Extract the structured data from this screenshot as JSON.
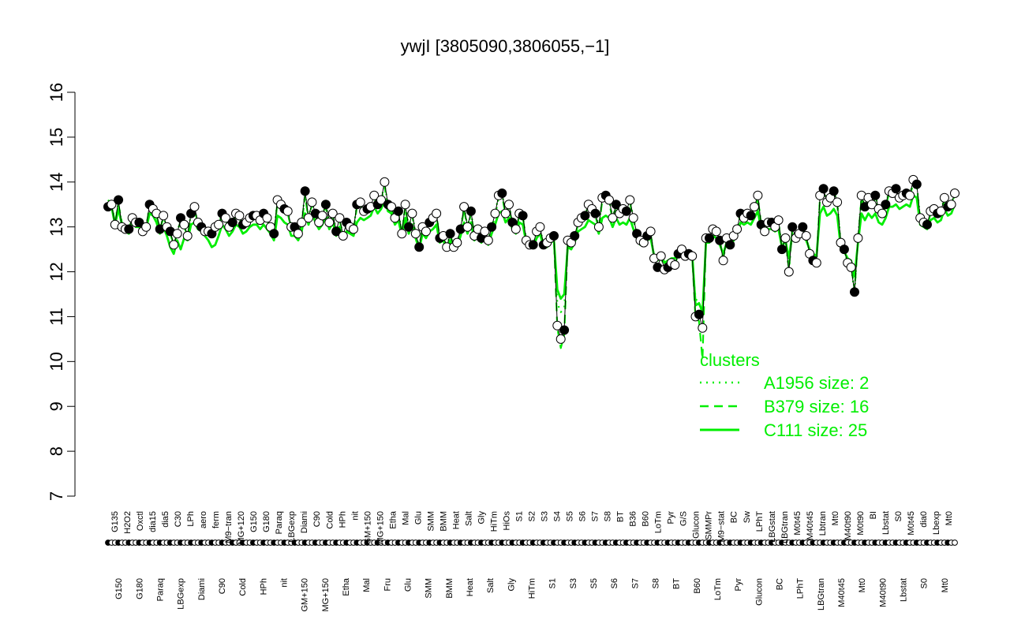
{
  "chart_data": {
    "type": "line",
    "title": "ywjI [3805090,3806055,−1]",
    "xlabel": "",
    "ylabel": "",
    "ylim": [
      7,
      16
    ],
    "y_ticks": [
      7,
      8,
      9,
      10,
      11,
      12,
      13,
      14,
      15,
      16
    ],
    "colors": {
      "series": "#00ee00",
      "points": "#000000",
      "open_fill": "#ffffff"
    },
    "legend": {
      "title": "clusters",
      "position": "bottom-right",
      "entries": [
        {
          "label": "A1956 size: 2",
          "style": "dotted"
        },
        {
          "label": "B379 size: 16",
          "style": "dashed"
        },
        {
          "label": "C111 size: 25",
          "style": "solid"
        }
      ]
    },
    "labels_top": [
      "G135",
      "H2O2",
      "Oxctl",
      "dia15",
      "dia5",
      "C30",
      "LPh",
      "aero",
      "ferm",
      "M9−tran",
      "MG+120",
      "G150",
      "G180",
      "Paraq",
      "LBGexp",
      "Diami",
      "C90",
      "Cold",
      "HPh",
      "nit",
      "GM+150",
      "MG+150",
      "Etha",
      "Mal",
      "Glu",
      "SMM",
      "BMM",
      "Heat",
      "Salt",
      "Gly",
      "HiTm",
      "HiOs",
      "S1",
      "S2",
      "S3",
      "S4",
      "S5",
      "S6",
      "S7",
      "S8",
      "BT",
      "B36",
      "B60",
      "LoTm",
      "Pyr",
      "G/S",
      "Glucon",
      "SMMPr",
      "M9−stat",
      "BC",
      "Sw",
      "LPhT",
      "LBGstat",
      "LBGtran",
      "M0t45",
      "M40t45",
      "Lbtran",
      "Mt0",
      "M40t90",
      "M0t90",
      "BI",
      "Lbstat",
      "S0",
      "M0t45",
      "dia0",
      "Lbexp",
      "Mt0"
    ],
    "labels_bottom": [
      "G150",
      "G180",
      "Paraq",
      "LBGexp",
      "Diami",
      "C90",
      "Cold",
      "HPh",
      "nit",
      "GM+150",
      "MG+150",
      "Etha",
      "Mal",
      "Fru",
      "Glu",
      "SMM",
      "BMM",
      "Heat",
      "Salt",
      "Gly",
      "HiTm",
      "S1",
      "S3",
      "S5",
      "S6",
      "S7",
      "S8",
      "BT",
      "B60",
      "LoTm",
      "Pyr",
      "Glucon",
      "BC",
      "LPhT",
      "LBGtran",
      "M40t45",
      "Mt0",
      "M40t90",
      "Lbstat",
      "S0",
      "Mt0"
    ],
    "y_values": [
      13.45,
      13.5,
      13.05,
      13.6,
      13.0,
      12.95,
      12.95,
      13.2,
      13.1,
      13.1,
      12.9,
      13.0,
      13.5,
      13.4,
      13.3,
      12.95,
      13.25,
      13.0,
      12.9,
      12.6,
      12.85,
      13.2,
      13.05,
      12.8,
      13.3,
      13.45,
      13.1,
      13.0,
      12.9,
      12.9,
      12.85,
      13.0,
      13.05,
      13.3,
      13.2,
      13.0,
      13.1,
      13.3,
      13.25,
      13.05,
      13.1,
      13.2,
      13.25,
      13.25,
      13.15,
      13.3,
      13.2,
      13.0,
      12.85,
      13.6,
      13.5,
      13.4,
      13.35,
      13.0,
      13.0,
      12.85,
      13.1,
      13.8,
      13.2,
      13.55,
      13.3,
      13.1,
      13.25,
      13.5,
      13.1,
      13.3,
      12.9,
      13.2,
      12.8,
      13.1,
      13.0,
      12.95,
      13.5,
      13.55,
      13.35,
      13.4,
      13.45,
      13.7,
      13.5,
      13.6,
      14.0,
      13.5,
      13.45,
      13.2,
      13.35,
      12.85,
      13.5,
      13.0,
      13.3,
      12.85,
      12.55,
      13.0,
      12.9,
      13.1,
      13.2,
      13.3,
      12.75,
      12.8,
      12.55,
      12.85,
      12.55,
      12.65,
      12.95,
      13.45,
      13.0,
      13.35,
      12.8,
      12.95,
      12.75,
      12.9,
      12.7,
      13.0,
      13.3,
      13.7,
      13.75,
      13.3,
      13.5,
      13.1,
      12.95,
      13.3,
      13.25,
      12.7,
      12.6,
      12.6,
      12.9,
      13.0,
      12.6,
      12.65,
      12.75,
      12.8,
      10.8,
      10.5,
      10.7,
      12.7,
      12.65,
      12.8,
      13.1,
      13.2,
      13.25,
      13.5,
      13.4,
      13.3,
      13.0,
      13.65,
      13.7,
      13.6,
      13.2,
      13.5,
      13.3,
      13.4,
      13.35,
      13.6,
      13.2,
      12.85,
      12.7,
      12.65,
      12.8,
      12.9,
      12.3,
      12.1,
      12.35,
      12.05,
      12.1,
      12.2,
      12.15,
      12.4,
      12.5,
      12.35,
      12.4,
      12.35,
      11.0,
      11.05,
      10.75,
      12.75,
      12.75,
      12.95,
      12.9,
      12.7,
      12.25,
      12.75,
      12.6,
      12.8,
      12.95,
      13.3,
      13.2,
      13.3,
      13.25,
      13.45,
      13.7,
      13.05,
      12.9,
      13.1,
      13.1,
      13.0,
      13.15,
      12.5,
      12.75,
      12.0,
      13.0,
      12.75,
      12.85,
      13.0,
      12.8,
      12.4,
      12.25,
      12.2,
      13.7,
      13.85,
      13.55,
      13.65,
      13.8,
      13.55,
      12.65,
      12.5,
      12.2,
      12.1,
      11.55,
      12.75,
      13.7,
      13.45,
      13.65,
      13.5,
      13.7,
      13.4,
      13.3,
      13.5,
      13.8,
      13.75,
      13.85,
      13.65,
      13.7,
      13.75,
      13.7,
      14.05,
      13.95,
      13.2,
      13.1,
      13.05,
      13.35,
      13.4,
      13.3,
      13.35,
      13.65,
      13.45,
      13.5,
      13.75
    ],
    "series": [
      {
        "name": "C111",
        "style": "solid",
        "values": [
          13.55,
          13.45,
          13.05,
          13.4,
          13.05,
          12.9,
          12.85,
          13.1,
          13.0,
          13.0,
          12.85,
          12.95,
          13.3,
          13.25,
          13.1,
          12.85,
          13.0,
          12.8,
          12.55,
          12.4,
          12.7,
          12.5,
          12.75,
          12.7,
          13.05,
          13.1,
          12.95,
          12.9,
          12.8,
          12.7,
          12.55,
          12.6,
          12.8,
          13.05,
          12.95,
          12.8,
          12.9,
          13.05,
          13.0,
          12.85,
          12.9,
          13.0,
          13.05,
          13.05,
          12.95,
          13.05,
          12.95,
          12.85,
          12.7,
          13.25,
          13.2,
          13.1,
          13.05,
          12.8,
          12.8,
          12.7,
          12.9,
          13.3,
          13.05,
          13.3,
          13.1,
          12.95,
          13.05,
          13.25,
          12.95,
          13.1,
          12.8,
          13.0,
          12.75,
          12.9,
          12.85,
          12.8,
          13.1,
          13.2,
          13.15,
          13.2,
          13.25,
          13.45,
          13.3,
          13.4,
          13.6,
          13.35,
          13.3,
          13.05,
          13.15,
          12.8,
          13.2,
          12.85,
          13.05,
          12.75,
          12.5,
          12.85,
          12.75,
          12.9,
          12.95,
          13.05,
          12.65,
          12.7,
          12.5,
          12.7,
          12.5,
          12.55,
          12.8,
          13.1,
          12.85,
          13.1,
          12.7,
          12.8,
          12.65,
          12.75,
          12.6,
          12.85,
          13.05,
          13.3,
          13.35,
          13.1,
          13.2,
          12.95,
          12.85,
          13.1,
          13.05,
          12.65,
          12.55,
          12.55,
          12.75,
          12.85,
          12.55,
          12.55,
          12.65,
          12.7,
          11.6,
          11.4,
          11.5,
          12.55,
          12.5,
          12.65,
          12.9,
          12.95,
          13.0,
          13.15,
          13.1,
          13.05,
          12.85,
          13.2,
          13.25,
          13.2,
          13.0,
          13.2,
          13.05,
          13.1,
          13.05,
          13.2,
          12.95,
          12.75,
          12.6,
          12.6,
          12.7,
          12.75,
          12.35,
          12.25,
          12.4,
          12.2,
          12.25,
          12.3,
          12.3,
          12.45,
          12.5,
          12.4,
          12.45,
          12.4,
          11.25,
          11.3,
          11.1,
          12.65,
          12.65,
          12.8,
          12.75,
          12.6,
          12.4,
          12.65,
          12.55,
          12.7,
          12.85,
          13.1,
          13.05,
          13.1,
          13.05,
          13.2,
          13.35,
          12.95,
          12.85,
          12.95,
          12.95,
          12.9,
          12.95,
          12.55,
          12.7,
          12.3,
          12.85,
          12.7,
          12.75,
          12.85,
          12.7,
          12.5,
          12.4,
          12.35,
          13.3,
          13.45,
          13.25,
          13.3,
          13.4,
          13.25,
          12.55,
          12.45,
          12.3,
          12.25,
          11.9,
          12.65,
          13.3,
          13.15,
          13.3,
          13.2,
          13.3,
          13.1,
          13.05,
          13.2,
          13.45,
          13.45,
          13.5,
          13.4,
          13.45,
          13.5,
          13.45,
          13.7,
          13.65,
          13.05,
          13.0,
          12.95,
          13.15,
          13.2,
          13.1,
          13.15,
          13.4,
          13.25,
          13.3,
          13.5
        ]
      },
      {
        "name": "B379",
        "style": "dashed",
        "values": [
          13.6,
          13.5,
          13.1,
          13.5,
          13.1,
          12.95,
          12.95,
          13.2,
          13.1,
          13.1,
          12.9,
          13.0,
          13.45,
          13.35,
          13.25,
          12.95,
          13.2,
          13.0,
          12.85,
          12.6,
          12.85,
          13.15,
          13.0,
          12.8,
          13.25,
          13.4,
          13.05,
          13.0,
          12.9,
          12.9,
          12.8,
          13.0,
          13.0,
          13.25,
          13.15,
          13.0,
          13.05,
          13.25,
          13.2,
          13.0,
          13.05,
          13.15,
          13.2,
          13.2,
          13.1,
          13.25,
          13.15,
          12.95,
          12.8,
          13.55,
          13.45,
          13.35,
          13.3,
          12.95,
          12.95,
          12.85,
          13.05,
          13.7,
          13.15,
          13.5,
          13.25,
          13.05,
          13.2,
          13.45,
          13.05,
          13.25,
          12.9,
          13.15,
          12.8,
          13.05,
          12.95,
          12.9,
          13.45,
          13.5,
          13.3,
          13.35,
          13.4,
          13.65,
          13.45,
          13.55,
          13.9,
          13.45,
          13.4,
          13.15,
          13.3,
          12.85,
          13.45,
          12.95,
          13.25,
          12.85,
          12.55,
          12.95,
          12.85,
          13.05,
          13.15,
          13.25,
          12.75,
          12.8,
          12.55,
          12.8,
          12.55,
          12.6,
          12.9,
          13.4,
          12.95,
          13.3,
          12.8,
          12.9,
          12.7,
          12.85,
          12.7,
          12.95,
          13.25,
          13.65,
          13.7,
          13.25,
          13.45,
          13.05,
          12.9,
          13.25,
          13.2,
          12.7,
          12.6,
          12.6,
          12.85,
          12.95,
          12.6,
          12.6,
          12.7,
          12.75,
          10.75,
          10.3,
          10.6,
          12.65,
          12.6,
          12.75,
          13.05,
          13.15,
          13.2,
          13.45,
          13.35,
          13.25,
          12.95,
          13.6,
          13.65,
          13.55,
          13.15,
          13.45,
          13.25,
          13.35,
          13.3,
          13.55,
          13.15,
          12.85,
          12.7,
          12.65,
          12.8,
          12.85,
          12.3,
          12.1,
          12.35,
          12.05,
          12.1,
          12.2,
          12.15,
          12.4,
          12.5,
          12.35,
          12.4,
          12.35,
          10.95,
          10.9,
          10.05,
          12.7,
          12.7,
          12.9,
          12.85,
          12.7,
          12.3,
          12.7,
          12.6,
          12.8,
          12.9,
          13.25,
          13.15,
          13.25,
          13.2,
          13.4,
          13.65,
          13.05,
          12.9,
          13.05,
          13.05,
          13.0,
          13.1,
          12.5,
          12.75,
          12.05,
          12.95,
          12.75,
          12.85,
          12.95,
          12.8,
          12.45,
          12.3,
          12.25,
          13.65,
          13.8,
          13.5,
          13.6,
          13.75,
          13.5,
          12.6,
          12.5,
          12.25,
          12.15,
          11.6,
          12.7,
          13.65,
          13.4,
          13.6,
          13.45,
          13.65,
          13.35,
          13.25,
          13.45,
          13.75,
          13.7,
          13.8,
          13.6,
          13.65,
          13.7,
          13.65,
          14.0,
          13.9,
          13.15,
          13.05,
          13.0,
          13.3,
          13.35,
          13.25,
          13.3,
          13.6,
          13.4,
          13.45,
          13.7
        ]
      },
      {
        "name": "A1956",
        "style": "dotted",
        "values": [
          13.55,
          13.5,
          13.1,
          13.55,
          13.05,
          12.95,
          12.9,
          13.2,
          13.1,
          13.1,
          12.9,
          13.0,
          13.5,
          13.4,
          13.3,
          12.95,
          13.25,
          12.95,
          12.85,
          12.6,
          12.85,
          13.2,
          13.05,
          12.8,
          13.3,
          13.4,
          13.1,
          13.0,
          12.9,
          12.9,
          12.85,
          13.0,
          13.05,
          13.3,
          13.2,
          13.0,
          13.1,
          13.3,
          13.25,
          13.05,
          13.1,
          13.2,
          13.25,
          13.25,
          13.15,
          13.3,
          13.2,
          13.0,
          12.85,
          13.6,
          13.5,
          13.4,
          13.35,
          13.0,
          13.0,
          12.85,
          13.1,
          13.75,
          13.2,
          13.55,
          13.3,
          13.1,
          13.25,
          13.5,
          13.1,
          13.3,
          12.9,
          13.2,
          12.8,
          13.1,
          13.0,
          12.95,
          13.5,
          13.55,
          13.35,
          13.4,
          13.45,
          13.7,
          13.5,
          13.6,
          13.95,
          13.5,
          13.45,
          13.2,
          13.35,
          12.85,
          13.5,
          13.0,
          13.3,
          12.85,
          12.55,
          13.0,
          12.9,
          13.1,
          13.2,
          13.3,
          12.75,
          12.8,
          12.55,
          12.85,
          12.55,
          12.65,
          12.95,
          13.45,
          13.0,
          13.35,
          12.8,
          12.95,
          12.75,
          12.9,
          12.7,
          13.0,
          13.3,
          13.7,
          13.75,
          13.3,
          13.5,
          13.1,
          12.95,
          13.3,
          13.25,
          12.7,
          12.6,
          12.6,
          12.9,
          13.0,
          12.6,
          12.65,
          12.75,
          12.8,
          11.3,
          11.1,
          11.2,
          12.7,
          12.65,
          12.8,
          13.1,
          13.2,
          13.25,
          13.5,
          13.4,
          13.3,
          13.0,
          13.65,
          13.7,
          13.6,
          13.2,
          13.5,
          13.3,
          13.4,
          13.35,
          13.6,
          13.2,
          12.85,
          12.7,
          12.65,
          12.8,
          12.9,
          12.3,
          12.1,
          12.35,
          12.05,
          12.1,
          12.2,
          12.15,
          12.4,
          12.5,
          12.35,
          12.4,
          12.35,
          11.4,
          11.3,
          11.0,
          12.75,
          12.75,
          12.95,
          12.9,
          12.7,
          12.25,
          12.75,
          12.6,
          12.8,
          12.95,
          13.3,
          13.2,
          13.3,
          13.25,
          13.45,
          13.7,
          13.05,
          12.9,
          13.1,
          13.1,
          13.0,
          13.15,
          12.5,
          12.75,
          12.0,
          13.0,
          12.75,
          12.85,
          13.0,
          12.8,
          12.4,
          12.25,
          12.2,
          13.7,
          13.85,
          13.55,
          13.65,
          13.8,
          13.55,
          12.65,
          12.5,
          12.2,
          12.1,
          11.55,
          12.75,
          13.7,
          13.45,
          13.65,
          13.5,
          13.7,
          13.4,
          13.3,
          13.5,
          13.8,
          13.75,
          13.85,
          13.65,
          13.7,
          13.75,
          13.7,
          14.05,
          13.95,
          13.2,
          13.1,
          13.05,
          13.35,
          13.4,
          13.3,
          13.35,
          13.65,
          13.45,
          13.5,
          13.75
        ]
      }
    ]
  }
}
